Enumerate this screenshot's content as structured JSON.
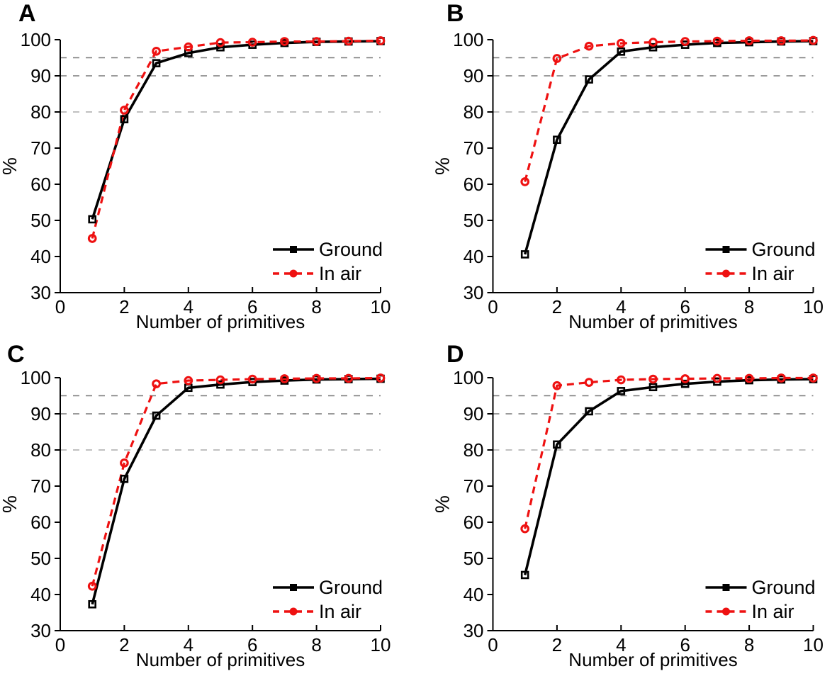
{
  "figure": {
    "background_color": "#ffffff",
    "series_colors": {
      "ground": "#000000",
      "in_air": "#ee1111"
    },
    "gridline_dark_color": "#7a7a7a",
    "gridline_light_color": "#ababab"
  },
  "chart_data": [
    {
      "panel_label": "A",
      "type": "line",
      "x": [
        1,
        2,
        3,
        4,
        5,
        6,
        7,
        8,
        9,
        10
      ],
      "series": [
        {
          "name": "Ground",
          "color": "#000000",
          "line_style": "solid",
          "marker": "square",
          "values": [
            50.3,
            78.0,
            93.5,
            96.3,
            97.9,
            98.6,
            99.1,
            99.4,
            99.5,
            99.6
          ]
        },
        {
          "name": "In air",
          "color": "#ee1111",
          "line_style": "dashed",
          "marker": "circle",
          "values": [
            45.0,
            80.5,
            96.8,
            98.0,
            99.2,
            99.3,
            99.5,
            99.5,
            99.6,
            99.7
          ]
        }
      ],
      "xlabel": "Number of primitives",
      "ylabel": "%",
      "xlim": [
        0,
        10
      ],
      "ylim": [
        30,
        100
      ],
      "xticks": [
        0,
        2,
        4,
        6,
        8,
        10
      ],
      "yticks": [
        30,
        40,
        50,
        60,
        70,
        80,
        90,
        100
      ],
      "gridlines": [
        {
          "y": 95,
          "color": "#7a7a7a"
        },
        {
          "y": 90,
          "color": "#7a7a7a"
        },
        {
          "y": 80,
          "color": "#ababab"
        }
      ],
      "legend": {
        "position": "bottom-right",
        "entries": [
          "Ground",
          "In air"
        ]
      }
    },
    {
      "panel_label": "B",
      "type": "line",
      "x": [
        1,
        2,
        3,
        4,
        5,
        6,
        7,
        8,
        9,
        10
      ],
      "series": [
        {
          "name": "Ground",
          "color": "#000000",
          "line_style": "solid",
          "marker": "square",
          "values": [
            40.6,
            72.3,
            89.0,
            96.7,
            97.9,
            98.6,
            99.1,
            99.3,
            99.5,
            99.6
          ]
        },
        {
          "name": "In air",
          "color": "#ee1111",
          "line_style": "dashed",
          "marker": "circle",
          "values": [
            60.7,
            94.8,
            98.2,
            99.0,
            99.3,
            99.5,
            99.6,
            99.7,
            99.7,
            99.8
          ]
        }
      ],
      "xlabel": "Number of primitives",
      "ylabel": "%",
      "xlim": [
        0,
        10
      ],
      "ylim": [
        30,
        100
      ],
      "xticks": [
        0,
        2,
        4,
        6,
        8,
        10
      ],
      "yticks": [
        30,
        40,
        50,
        60,
        70,
        80,
        90,
        100
      ],
      "gridlines": [
        {
          "y": 95,
          "color": "#7a7a7a"
        },
        {
          "y": 90,
          "color": "#7a7a7a"
        },
        {
          "y": 80,
          "color": "#ababab"
        }
      ],
      "legend": {
        "position": "bottom-right",
        "entries": [
          "Ground",
          "In air"
        ]
      }
    },
    {
      "panel_label": "C",
      "type": "line",
      "x": [
        1,
        2,
        3,
        4,
        5,
        6,
        7,
        8,
        9,
        10
      ],
      "series": [
        {
          "name": "Ground",
          "color": "#000000",
          "line_style": "solid",
          "marker": "square",
          "values": [
            37.3,
            72.0,
            89.5,
            97.2,
            98.1,
            98.8,
            99.2,
            99.5,
            99.6,
            99.7
          ]
        },
        {
          "name": "In air",
          "color": "#ee1111",
          "line_style": "dashed",
          "marker": "circle",
          "values": [
            42.3,
            76.4,
            98.3,
            99.2,
            99.4,
            99.6,
            99.7,
            99.8,
            99.8,
            99.9
          ]
        }
      ],
      "xlabel": "Number of primitives",
      "ylabel": "%",
      "xlim": [
        0,
        10
      ],
      "ylim": [
        30,
        100
      ],
      "xticks": [
        0,
        2,
        4,
        6,
        8,
        10
      ],
      "yticks": [
        30,
        40,
        50,
        60,
        70,
        80,
        90,
        100
      ],
      "gridlines": [
        {
          "y": 95,
          "color": "#7a7a7a"
        },
        {
          "y": 90,
          "color": "#7a7a7a"
        },
        {
          "y": 80,
          "color": "#ababab"
        }
      ],
      "legend": {
        "position": "bottom-right",
        "entries": [
          "Ground",
          "In air"
        ]
      }
    },
    {
      "panel_label": "D",
      "type": "line",
      "x": [
        1,
        2,
        3,
        4,
        5,
        6,
        7,
        8,
        9,
        10
      ],
      "series": [
        {
          "name": "Ground",
          "color": "#000000",
          "line_style": "solid",
          "marker": "square",
          "values": [
            45.4,
            81.5,
            90.7,
            96.3,
            97.4,
            98.3,
            98.9,
            99.3,
            99.5,
            99.6
          ]
        },
        {
          "name": "In air",
          "color": "#ee1111",
          "line_style": "dashed",
          "marker": "circle",
          "values": [
            58.2,
            97.8,
            98.7,
            99.4,
            99.6,
            99.7,
            99.8,
            99.8,
            99.9,
            99.9
          ]
        }
      ],
      "xlabel": "Number of primitives",
      "ylabel": "%",
      "xlim": [
        0,
        10
      ],
      "ylim": [
        30,
        100
      ],
      "xticks": [
        0,
        2,
        4,
        6,
        8,
        10
      ],
      "yticks": [
        30,
        40,
        50,
        60,
        70,
        80,
        90,
        100
      ],
      "gridlines": [
        {
          "y": 95,
          "color": "#7a7a7a"
        },
        {
          "y": 90,
          "color": "#7a7a7a"
        },
        {
          "y": 80,
          "color": "#ababab"
        }
      ],
      "legend": {
        "position": "bottom-right",
        "entries": [
          "Ground",
          "In air"
        ]
      }
    }
  ]
}
